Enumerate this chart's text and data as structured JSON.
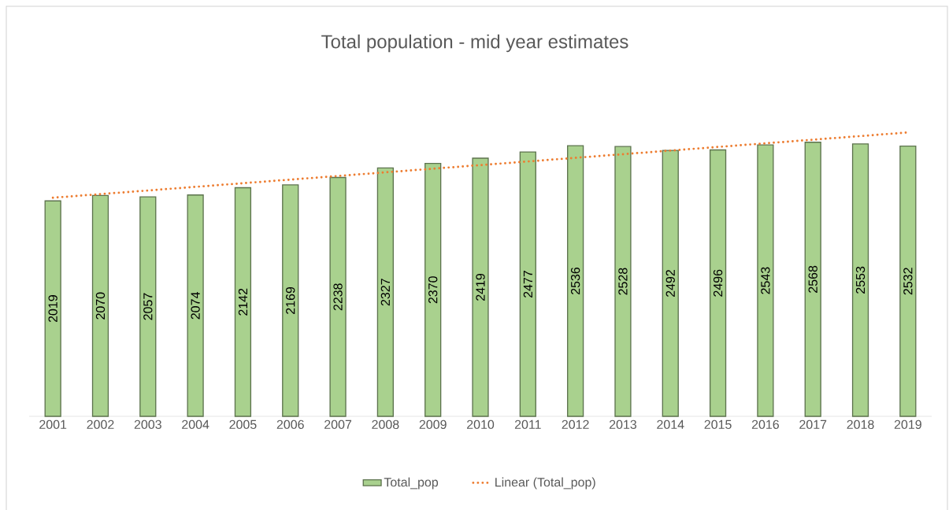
{
  "chart_data": {
    "type": "bar",
    "title": "Total population - mid year estimates",
    "x": [
      2001,
      2002,
      2003,
      2004,
      2005,
      2006,
      2007,
      2008,
      2009,
      2010,
      2011,
      2012,
      2013,
      2014,
      2015,
      2016,
      2017,
      2018,
      2019
    ],
    "xlim": [
      2000.5,
      2019.5
    ],
    "xticks": [
      2001,
      2002,
      2003,
      2004,
      2005,
      2006,
      2007,
      2008,
      2009,
      2010,
      2011,
      2012,
      2013,
      2014,
      2015,
      2016,
      2017,
      2018,
      2019
    ],
    "tick_labels": "x",
    "legend": "bottom",
    "series": [
      {
        "name": "Total_pop",
        "color": "#a9d18e",
        "values": [
          2019,
          2070,
          2057,
          2074,
          2142,
          2169,
          2238,
          2327,
          2370,
          2419,
          2477,
          2536,
          2528,
          2492,
          2496,
          2543,
          2568,
          2553,
          2532
        ],
        "value_labels": [
          "2019",
          "2070",
          "2057",
          "2074",
          "2142",
          "2169",
          "2238",
          "2327",
          "2370",
          "2419",
          "2477",
          "2536",
          "2528",
          "2492",
          "2496",
          "2543",
          "2568",
          "2553",
          "2532"
        ]
      },
      {
        "name": "Linear (Total_pop)",
        "type": "line",
        "color": "#ed7d31",
        "line_style": "dotted",
        "x": [
          2001,
          2019
        ],
        "values": [
          2048,
          2660
        ]
      }
    ]
  }
}
